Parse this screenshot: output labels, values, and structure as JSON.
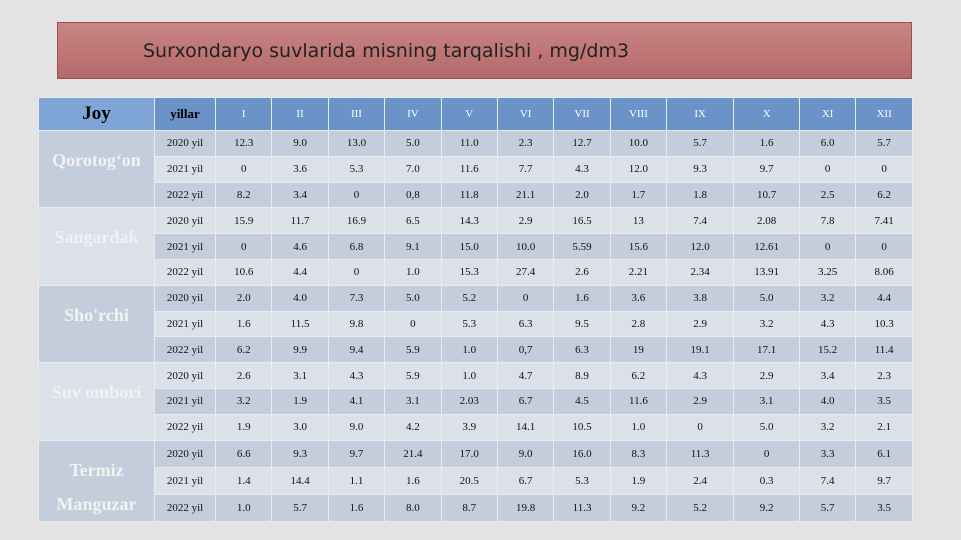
{
  "title": "Surxondaryo suvlarida misning tarqalishi , mg/dm3",
  "table": {
    "header": [
      "Joy",
      "yillar",
      "I",
      "II",
      "III",
      "IV",
      "V",
      "VI",
      "VII",
      "VIII",
      "IX",
      "X",
      "XI",
      "XII"
    ],
    "groups": [
      {
        "name": "Qorotog‘on",
        "rows": [
          [
            "2020 yil",
            "12.3",
            "9.0",
            "13.0",
            "5.0",
            "11.0",
            "2.3",
            "12.7",
            "10.0",
            "5.7",
            "1.6",
            "6.0",
            "5.7"
          ],
          [
            "2021 yil",
            "0",
            "3.6",
            "5.3",
            "7.0",
            "11.6",
            "7.7",
            "4.3",
            "12.0",
            "9.3",
            "9.7",
            "0",
            "0"
          ],
          [
            "2022 yil",
            "8.2",
            "3.4",
            "0",
            "0,8",
            "11.8",
            "21.1",
            "2.0",
            "1.7",
            "1.8",
            "10.7",
            "2.5",
            "6.2"
          ]
        ]
      },
      {
        "name": "Sangardak",
        "rows": [
          [
            "2020 yil",
            "15.9",
            "11.7",
            "16.9",
            "6.5",
            "14.3",
            "2.9",
            "16.5",
            "13",
            "7.4",
            "2.08",
            "7.8",
            "7.41"
          ],
          [
            "2021 yil",
            "0",
            "4.6",
            "6.8",
            "9.1",
            "15.0",
            "10.0",
            "5.59",
            "15.6",
            "12.0",
            "12.61",
            "0",
            "0"
          ],
          [
            "2022 yil",
            "10.6",
            "4.4",
            "0",
            "1.0",
            "15.3",
            "27.4",
            "2.6",
            "2.21",
            "2.34",
            "13.91",
            "3.25",
            "8.06"
          ]
        ]
      },
      {
        "name": "Sho'rchi",
        "rows": [
          [
            "2020 yil",
            "2.0",
            "4.0",
            "7.3",
            "5.0",
            "5.2",
            "0",
            "1.6",
            "3.6",
            "3.8",
            "5.0",
            "3.2",
            "4.4"
          ],
          [
            "2021 yil",
            "1.6",
            "11.5",
            "9.8",
            "0",
            "5.3",
            "6.3",
            "9.5",
            "2.8",
            "2.9",
            "3.2",
            "4.3",
            "10.3"
          ],
          [
            "2022 yil",
            "6.2",
            "9.9",
            "9.4",
            "5.9",
            "1.0",
            "0,7",
            "6.3",
            "19",
            "19.1",
            "17.1",
            "15.2",
            "11.4"
          ]
        ]
      },
      {
        "name": "Suv ombori",
        "rows": [
          [
            "2020 yil",
            "2.6",
            "3.1",
            "4.3",
            "5.9",
            "1.0",
            "4.7",
            "8.9",
            "6.2",
            "4.3",
            "2.9",
            "3.4",
            "2.3"
          ],
          [
            "2021 yil",
            "3.2",
            "1.9",
            "4.1",
            "3.1",
            "2.03",
            "6.7",
            "4.5",
            "11.6",
            "2.9",
            "3.1",
            "4.0",
            "3.5"
          ],
          [
            "2022 yil",
            "1.9",
            "3.0",
            "9.0",
            "4.2",
            "3.9",
            "14.1",
            "10.5",
            "1.0",
            "0",
            "5.0",
            "3.2",
            "2.1"
          ]
        ]
      },
      {
        "name": "Termiz Manguzar",
        "rows": [
          [
            "2020 yil",
            "6.6",
            "9.3",
            "9.7",
            "21.4",
            "17.0",
            "9.0",
            "16.0",
            "8.3",
            "11.3",
            "0",
            "3.3",
            "6.1"
          ],
          [
            "2021 yil",
            "1.4",
            "14.4",
            "1.1",
            "1.6",
            "20.5",
            "6.7",
            "5.3",
            "1.9",
            "2.4",
            "0.3",
            "7.4",
            "9.7"
          ],
          [
            "2022 yil",
            "1.0",
            "5.7",
            "1.6",
            "8.0",
            "8.7",
            "19.8",
            "11.3",
            "9.2",
            "5.2",
            "9.2",
            "5.7",
            "3.5"
          ]
        ]
      }
    ]
  }
}
